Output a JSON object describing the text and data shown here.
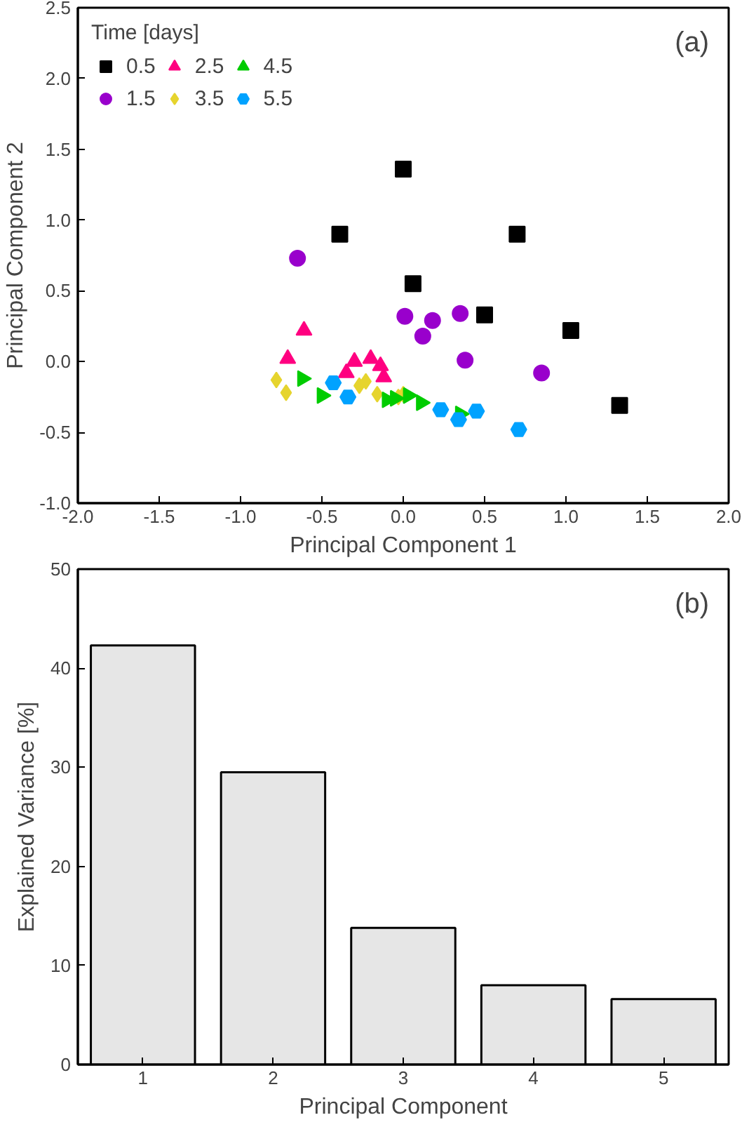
{
  "chart_data": [
    {
      "type": "scatter",
      "xlabel": "Principal Component 1",
      "ylabel": "Principal Component 2",
      "legend_title": "Time [days]",
      "legend": "top left",
      "grid": false,
      "xlim": [
        -2.0,
        2.0
      ],
      "xticks": [
        {
          "value": -2,
          "label": "-2.0"
        },
        {
          "value": -1.5,
          "label": "-1.5"
        },
        {
          "value": -1,
          "label": "-1.0"
        },
        {
          "value": -0.5,
          "label": "-0.5"
        },
        {
          "value": 0,
          "label": "0.0"
        },
        {
          "value": 0.5,
          "label": "0.5"
        },
        {
          "value": 1,
          "label": "1.0"
        },
        {
          "value": 1.5,
          "label": "1.5"
        },
        {
          "value": 2,
          "label": "2.0"
        }
      ],
      "ylim": [
        -1.0,
        2.5
      ],
      "yticks": [
        {
          "value": -1,
          "label": "-1.0"
        },
        {
          "value": -0.5,
          "label": "-0.5"
        },
        {
          "value": 0,
          "label": "0.0"
        },
        {
          "value": 0.5,
          "label": "0.5"
        },
        {
          "value": 1,
          "label": "1.0"
        },
        {
          "value": 1.5,
          "label": "1.5"
        },
        {
          "value": 2,
          "label": "2.0"
        },
        {
          "value": 2.5,
          "label": "2.5"
        }
      ],
      "annotations": [
        "(a)"
      ],
      "series": [
        {
          "name": "0.5",
          "color": "#000000",
          "marker": "square",
          "x": [
            -0.39,
            0.0,
            0.7,
            0.06,
            0.5,
            1.03,
            1.33
          ],
          "values": [
            0.9,
            1.36,
            0.9,
            0.55,
            0.33,
            0.22,
            -0.31
          ]
        },
        {
          "name": "1.5",
          "color": "#9900cc",
          "marker": "circle",
          "x": [
            -0.65,
            0.01,
            0.18,
            0.12,
            0.35,
            0.38,
            0.85
          ],
          "values": [
            0.73,
            0.32,
            0.29,
            0.18,
            0.34,
            0.01,
            -0.08
          ]
        },
        {
          "name": "2.5",
          "color": "#ff0080",
          "marker": "triangle",
          "x": [
            -0.61,
            -0.71,
            -0.35,
            -0.3,
            -0.2,
            -0.14,
            -0.12
          ],
          "values": [
            0.22,
            0.02,
            -0.08,
            0.0,
            0.02,
            -0.03,
            -0.11
          ]
        },
        {
          "name": "3.5",
          "color": "#e6d42e",
          "marker": "diamond",
          "x": [
            -0.78,
            -0.72,
            -0.27,
            -0.23,
            -0.16,
            -0.03,
            0.0
          ],
          "values": [
            -0.13,
            -0.22,
            -0.17,
            -0.14,
            -0.23,
            -0.25,
            -0.23
          ]
        },
        {
          "name": "4.5",
          "color": "#00cc00",
          "marker": "triangle_right",
          "x": [
            -0.62,
            -0.5,
            -0.1,
            -0.05,
            0.03,
            0.11,
            0.35
          ],
          "values": [
            -0.12,
            -0.24,
            -0.27,
            -0.26,
            -0.24,
            -0.29,
            -0.37
          ]
        },
        {
          "name": "5.5",
          "color": "#00a2ff",
          "x": [
            -0.43,
            -0.34,
            0.23,
            0.34,
            0.45,
            0.71
          ],
          "values": [
            -0.15,
            -0.25,
            -0.34,
            -0.41,
            -0.35,
            -0.48
          ]
        }
      ]
    },
    {
      "type": "bar",
      "xlabel": "Principal Component",
      "ylabel": "Explained Variance [%]",
      "grid": false,
      "categories": [
        "1",
        "2",
        "3",
        "4",
        "5"
      ],
      "values": [
        42.3,
        29.5,
        13.8,
        8.0,
        6.6
      ],
      "color": "#e6e6e6",
      "ylim": [
        0,
        50
      ],
      "yticks": [
        0,
        10,
        20,
        30,
        40,
        50
      ],
      "annotations": [
        "(b)"
      ]
    }
  ]
}
